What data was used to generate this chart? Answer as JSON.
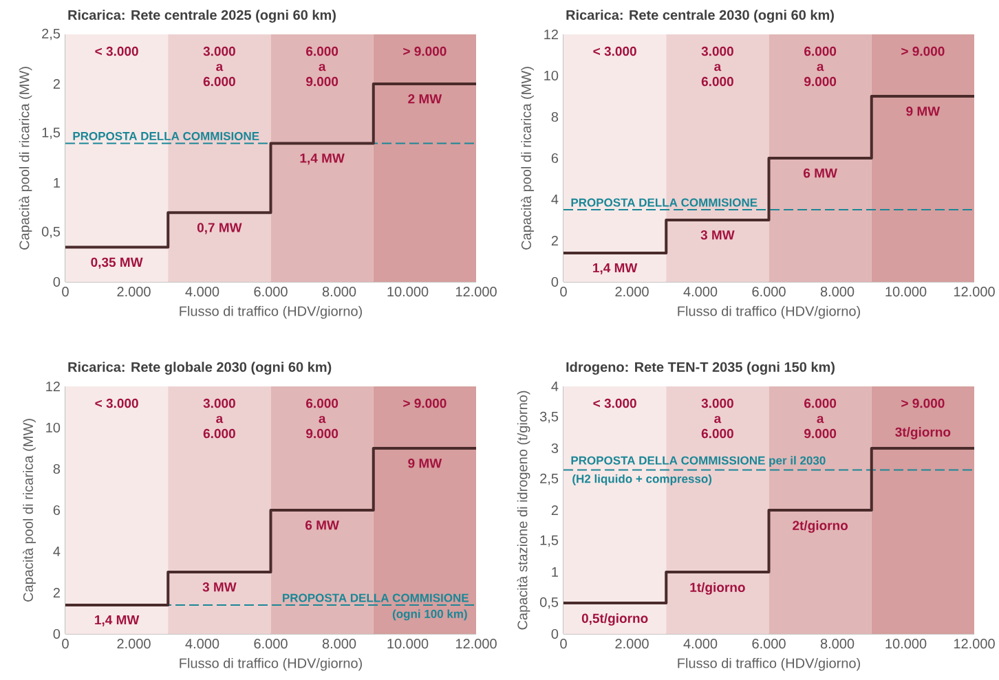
{
  "chart_data": [
    {
      "type": "step",
      "title": "Ricarica: Rete centrale 2025 (ogni 60 km)",
      "xlabel": "Flusso di traffico (HDV/giorno)",
      "ylabel": "Capacità pool di ricarica (MW)",
      "xlim": [
        0,
        12000
      ],
      "xticks": [
        0,
        {
          "value": 2000,
          "label": "2.000"
        },
        {
          "value": 4000,
          "label": "4.000"
        },
        {
          "value": 6000,
          "label": "6.000"
        },
        {
          "value": 8000,
          "label": "8.000"
        },
        {
          "value": 10000,
          "label": "10.000"
        },
        {
          "value": 12000,
          "label": "12.000"
        }
      ],
      "ylim": [
        0,
        2.5
      ],
      "yticks": [
        0,
        {
          "value": 0.5,
          "label": "0,5"
        },
        1,
        {
          "value": 1.5,
          "label": "1,5"
        },
        2,
        {
          "value": 2.5,
          "label": "2,5"
        }
      ],
      "x": [
        0,
        1500,
        4500,
        7500,
        10500,
        12000
      ],
      "series": [
        {
          "color": "#4a2b2b",
          "values": [
            0.35,
            0.35,
            0.7,
            1.4,
            2,
            2
          ],
          "value_labels": [
            null,
            "0,35 MW",
            "0,7 MW",
            "1,4 MW",
            "2 MW",
            null
          ]
        }
      ],
      "bands": [
        {
          "axis": "x",
          "from": 0,
          "to": 3000,
          "label": "< 3.000",
          "color": "#f7e9e8"
        },
        {
          "axis": "x",
          "from": 3000,
          "to": 6000,
          "label": "3.000 a 6.000",
          "color": "#edd1d1"
        },
        {
          "axis": "x",
          "from": 6000,
          "to": 9000,
          "label": "6.000 a 9.000",
          "color": "#e1b6b6"
        },
        {
          "axis": "x",
          "from": 9000,
          "to": 12000,
          "label": "> 9.000",
          "color": "#d69e9e"
        }
      ],
      "ref_lines": [
        {
          "axis": "y",
          "value": 1.4,
          "label": "PROPOSTA DELLA COMMISIONE",
          "color": "#1a8797",
          "line_style": "dashed"
        }
      ]
    },
    {
      "type": "step",
      "title": "Ricarica: Rete centrale 2030 (ogni 60 km)",
      "xlabel": "Flusso di traffico (HDV/giorno)",
      "ylabel": "Capacità pool di ricarica (MW)",
      "xlim": [
        0,
        12000
      ],
      "xticks": [
        0,
        {
          "value": 2000,
          "label": "2.000"
        },
        {
          "value": 4000,
          "label": "4.000"
        },
        {
          "value": 6000,
          "label": "6.000"
        },
        {
          "value": 8000,
          "label": "8.000"
        },
        {
          "value": 10000,
          "label": "10.000"
        },
        {
          "value": 12000,
          "label": "12.000"
        }
      ],
      "ylim": [
        0,
        12
      ],
      "yticks": [
        0,
        2,
        4,
        6,
        8,
        10,
        12
      ],
      "x": [
        0,
        1500,
        4500,
        7500,
        10500,
        12000
      ],
      "series": [
        {
          "color": "#4a2b2b",
          "values": [
            1.4,
            1.4,
            3,
            6,
            9,
            9
          ],
          "value_labels": [
            null,
            "1,4 MW",
            "3 MW",
            "6 MW",
            "9 MW",
            null
          ]
        }
      ],
      "bands": [
        {
          "axis": "x",
          "from": 0,
          "to": 3000,
          "label": "< 3.000",
          "color": "#f7e9e8"
        },
        {
          "axis": "x",
          "from": 3000,
          "to": 6000,
          "label": "3.000 a 6.000",
          "color": "#edd1d1"
        },
        {
          "axis": "x",
          "from": 6000,
          "to": 9000,
          "label": "6.000 a 9.000",
          "color": "#e1b6b6"
        },
        {
          "axis": "x",
          "from": 9000,
          "to": 12000,
          "label": "> 9.000",
          "color": "#d69e9e"
        }
      ],
      "ref_lines": [
        {
          "axis": "y",
          "value": 3.5,
          "label": "PROPOSTA DELLA COMMISIONE",
          "color": "#1a8797",
          "line_style": "dashed"
        }
      ]
    },
    {
      "type": "step",
      "title": "Ricarica: Rete globale 2030 (ogni 60 km)",
      "xlabel": "Flusso di traffico (HDV/giorno)",
      "ylabel": "Capacità pool di ricarica (MW)",
      "xlim": [
        0,
        12000
      ],
      "xticks": [
        0,
        {
          "value": 2000,
          "label": "2.000"
        },
        {
          "value": 4000,
          "label": "4.000"
        },
        {
          "value": 6000,
          "label": "6.000"
        },
        {
          "value": 8000,
          "label": "8.000"
        },
        {
          "value": 10000,
          "label": "10.000"
        },
        {
          "value": 12000,
          "label": "12.000"
        }
      ],
      "ylim": [
        0,
        12
      ],
      "yticks": [
        0,
        2,
        4,
        6,
        8,
        10,
        12
      ],
      "x": [
        0,
        1500,
        4500,
        7500,
        10500,
        12000
      ],
      "series": [
        {
          "color": "#4a2b2b",
          "values": [
            1.4,
            1.4,
            3,
            6,
            9,
            9
          ],
          "value_labels": [
            null,
            "1,4 MW",
            "3 MW",
            "6 MW",
            "9 MW",
            null
          ]
        }
      ],
      "bands": [
        {
          "axis": "x",
          "from": 0,
          "to": 3000,
          "label": "< 3.000",
          "color": "#f7e9e8"
        },
        {
          "axis": "x",
          "from": 3000,
          "to": 6000,
          "label": "3.000 a 6.000",
          "color": "#edd1d1"
        },
        {
          "axis": "x",
          "from": 6000,
          "to": 9000,
          "label": "6.000 a 9.000",
          "color": "#e1b6b6"
        },
        {
          "axis": "x",
          "from": 9000,
          "to": 12000,
          "label": "> 9.000",
          "color": "#d69e9e"
        }
      ],
      "ref_lines": [
        {
          "axis": "y",
          "value": 1.4,
          "label": "PROPOSTA DELLA COMMISIONE",
          "color": "#1a8797",
          "line_style": "dashed"
        }
      ],
      "annotations": [
        "(ogni 100 km)"
      ]
    },
    {
      "type": "step",
      "title": "Idrogeno: Rete TEN-T 2035 (ogni 150 km)",
      "xlabel": "Flusso di traffico (HDV/giorno)",
      "ylabel": "Capacità stazione di idrogeno (t/giorno)",
      "xlim": [
        0,
        12000
      ],
      "xticks": [
        0,
        {
          "value": 2000,
          "label": "2.000"
        },
        {
          "value": 4000,
          "label": "4.000"
        },
        {
          "value": 6000,
          "label": "6.000"
        },
        {
          "value": 8000,
          "label": "8.000"
        },
        {
          "value": 10000,
          "label": "10.000"
        },
        {
          "value": 12000,
          "label": "12.000"
        }
      ],
      "ylim": [
        0,
        4
      ],
      "yticks": [
        0,
        {
          "value": 0.5,
          "label": "0,5"
        },
        1,
        {
          "value": 1.5,
          "label": "1,5"
        },
        2,
        {
          "value": 2.5,
          "label": "2,5"
        },
        3,
        {
          "value": 3.5,
          "label": "3,5"
        },
        4
      ],
      "x": [
        0,
        1500,
        4500,
        7500,
        10500,
        12000
      ],
      "series": [
        {
          "color": "#4a2b2b",
          "values": [
            0.5,
            0.5,
            1,
            2,
            3,
            3
          ],
          "value_labels": [
            null,
            "0,5t/giorno",
            "1t/giorno",
            "2t/giorno",
            "3t/giorno",
            null
          ]
        }
      ],
      "bands": [
        {
          "axis": "x",
          "from": 0,
          "to": 3000,
          "label": "< 3.000",
          "color": "#f7e9e8"
        },
        {
          "axis": "x",
          "from": 3000,
          "to": 6000,
          "label": "3.000 a 6.000",
          "color": "#edd1d1"
        },
        {
          "axis": "x",
          "from": 6000,
          "to": 9000,
          "label": "6.000 a 9.000",
          "color": "#e1b6b6"
        },
        {
          "axis": "x",
          "from": 9000,
          "to": 12000,
          "label": "> 9.000",
          "color": "#d69e9e"
        }
      ],
      "ref_lines": [
        {
          "axis": "y",
          "value": 2.65,
          "label": "PROPOSTA DELLA COMMISSIONE per il 2030",
          "color": "#1a8797",
          "line_style": "dashed"
        }
      ],
      "annotations": [
        "(H2 liquido + compresso)"
      ]
    }
  ]
}
